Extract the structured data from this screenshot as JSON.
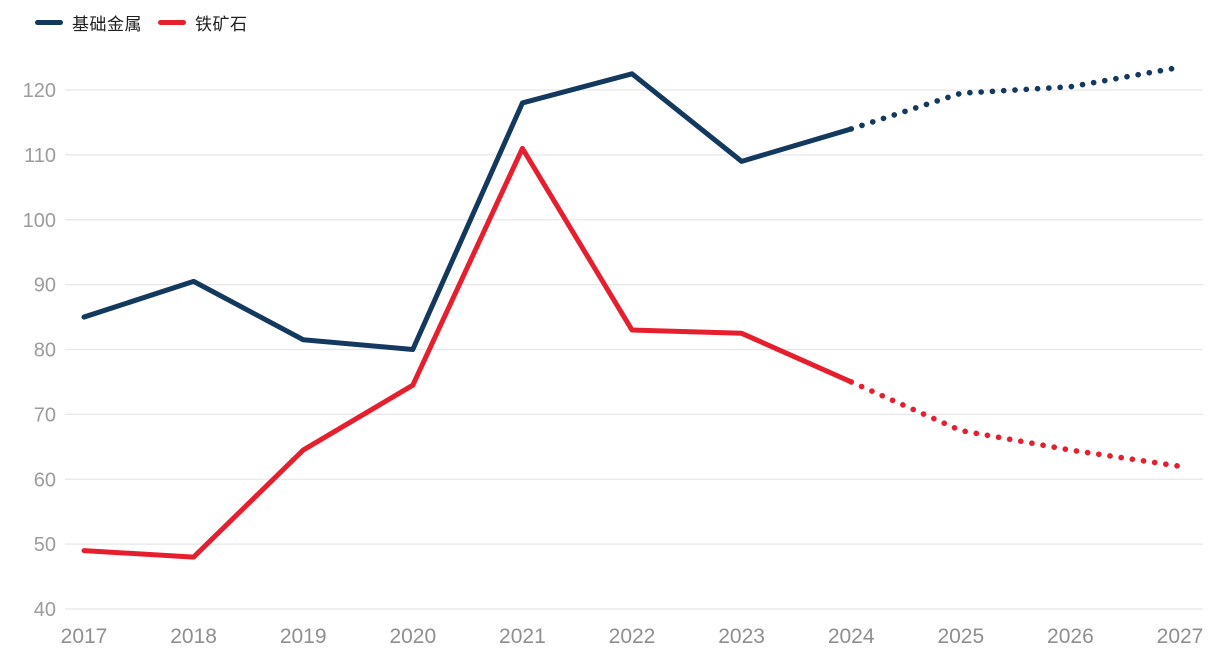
{
  "legend": {
    "items": [
      {
        "label": "基础金属",
        "color": "#14395f"
      },
      {
        "label": "铁矿石",
        "color": "#e61f2e"
      }
    ]
  },
  "chart_data": {
    "type": "line",
    "x": [
      2017,
      2018,
      2019,
      2020,
      2021,
      2022,
      2023,
      2024,
      2025,
      2026,
      2027
    ],
    "x_tick_labels": [
      "2017",
      "2018",
      "2019",
      "2020",
      "2021",
      "2022",
      "2023",
      "2024",
      "2025",
      "2026",
      "2027"
    ],
    "series": [
      {
        "name": "基础金属",
        "color": "#14395f",
        "solid_until_x": 2024,
        "dotted_after": true,
        "values": [
          85,
          90.5,
          81.5,
          80,
          118,
          122.5,
          109,
          114,
          119.5,
          120.5,
          123.5
        ]
      },
      {
        "name": "铁矿石",
        "color": "#e61f2e",
        "solid_until_x": 2024,
        "dotted_after": true,
        "values": [
          49,
          48,
          64.5,
          74.5,
          111,
          83,
          82.5,
          75,
          67.5,
          64.5,
          62
        ]
      }
    ],
    "title": "",
    "xlabel": "",
    "ylabel": "",
    "ylim": [
      40,
      126
    ],
    "yticks": [
      40,
      50,
      60,
      70,
      80,
      90,
      100,
      110,
      120
    ],
    "grid": "horizontal",
    "legend_position": "top-left",
    "gridline_color": "#e7e7e7",
    "y_tick_label_color": "#9c9c9c",
    "x_tick_label_color": "#8f8f8f"
  }
}
